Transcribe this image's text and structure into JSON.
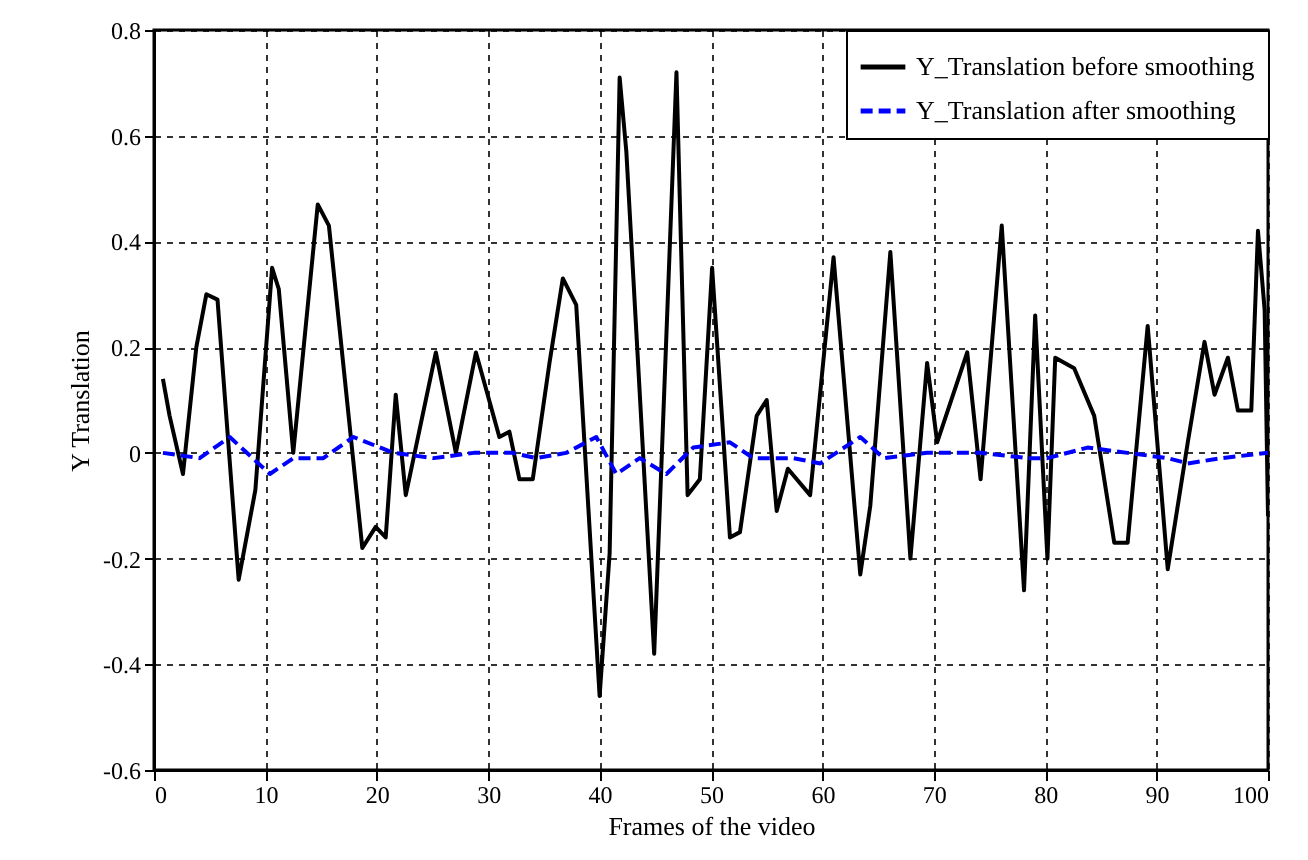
{
  "chart_data": {
    "type": "line",
    "xlabel": "Frames of the video",
    "ylabel": "Y    Translation",
    "xlim": [
      0,
      100
    ],
    "ylim": [
      -0.6,
      0.8
    ],
    "xticks": [
      0,
      10,
      20,
      30,
      40,
      50,
      60,
      70,
      80,
      90,
      100
    ],
    "yticks": [
      -0.6,
      -0.4,
      -0.2,
      0,
      0.2,
      0.4,
      0.6,
      0.8
    ],
    "grid": true,
    "legend": "top right",
    "marker": "none",
    "series": [
      {
        "name": "Y_Translation before smoothing",
        "color": "#000000",
        "line_style": "solid",
        "x": [
          0.8,
          1.4,
          2.6,
          3.8,
          4.7,
          5.7,
          7.6,
          9.1,
          10.6,
          11.2,
          12.5,
          14.7,
          15.7,
          18.7,
          19.9,
          20.8,
          21.7,
          22.6,
          25.3,
          27.1,
          28.9,
          31.0,
          31.9,
          32.8,
          34.0,
          35.5,
          36.7,
          37.9,
          40.0,
          40.9,
          41.8,
          42.4,
          44.9,
          46.9,
          47.9,
          49.0,
          50.1,
          51.7,
          52.6,
          54.1,
          55.0,
          55.9,
          56.9,
          58.9,
          61.0,
          63.4,
          64.3,
          66.1,
          67.9,
          69.4,
          70.3,
          73.0,
          74.2,
          76.1,
          78.1,
          79.1,
          80.2,
          80.9,
          82.6,
          84.4,
          86.2,
          87.4,
          89.2,
          91.0,
          92.8,
          94.3,
          95.2,
          96.4,
          97.3,
          98.5,
          99.1,
          99.7,
          100
        ],
        "values": [
          0.14,
          0.07,
          -0.04,
          0.2,
          0.3,
          0.29,
          -0.24,
          -0.07,
          0.35,
          0.31,
          0.0,
          0.47,
          0.43,
          -0.18,
          -0.14,
          -0.16,
          0.11,
          -0.08,
          0.19,
          0.0,
          0.19,
          0.03,
          0.04,
          -0.05,
          -0.05,
          0.17,
          0.33,
          0.28,
          -0.46,
          -0.19,
          0.71,
          0.57,
          -0.38,
          0.72,
          -0.08,
          -0.05,
          0.35,
          -0.16,
          -0.15,
          0.07,
          0.1,
          -0.11,
          -0.03,
          -0.08,
          0.37,
          -0.23,
          -0.1,
          0.38,
          -0.2,
          0.17,
          0.02,
          0.19,
          -0.05,
          0.43,
          -0.26,
          0.26,
          -0.2,
          0.18,
          0.16,
          0.07,
          -0.17,
          -0.17,
          0.24,
          -0.22,
          0.02,
          0.21,
          0.11,
          0.18,
          0.08,
          0.08,
          0.42,
          0.27,
          -0.12
        ]
      },
      {
        "name": "Y_Translation after smoothing",
        "color": "#0000ff",
        "line_style": "dashed",
        "x": [
          0.8,
          4.1,
          6.8,
          10.4,
          12.5,
          15.2,
          17.9,
          21.5,
          25.1,
          28.7,
          32.2,
          34.3,
          37.0,
          39.7,
          41.5,
          43.6,
          46.0,
          48.4,
          51.7,
          53.8,
          57.4,
          59.8,
          63.4,
          65.5,
          69.4,
          74.2,
          78.4,
          80.2,
          83.8,
          87.4,
          91.0,
          92.8,
          95.8,
          100
        ],
        "values": [
          0.0,
          -0.01,
          0.03,
          -0.04,
          -0.01,
          -0.01,
          0.03,
          0.0,
          -0.01,
          0.0,
          0.0,
          -0.01,
          0.0,
          0.03,
          -0.04,
          -0.01,
          -0.04,
          0.01,
          0.02,
          -0.01,
          -0.01,
          -0.02,
          0.03,
          -0.01,
          0.0,
          0.0,
          -0.01,
          -0.01,
          0.01,
          0.0,
          -0.01,
          -0.02,
          -0.01,
          0.0
        ]
      }
    ]
  }
}
